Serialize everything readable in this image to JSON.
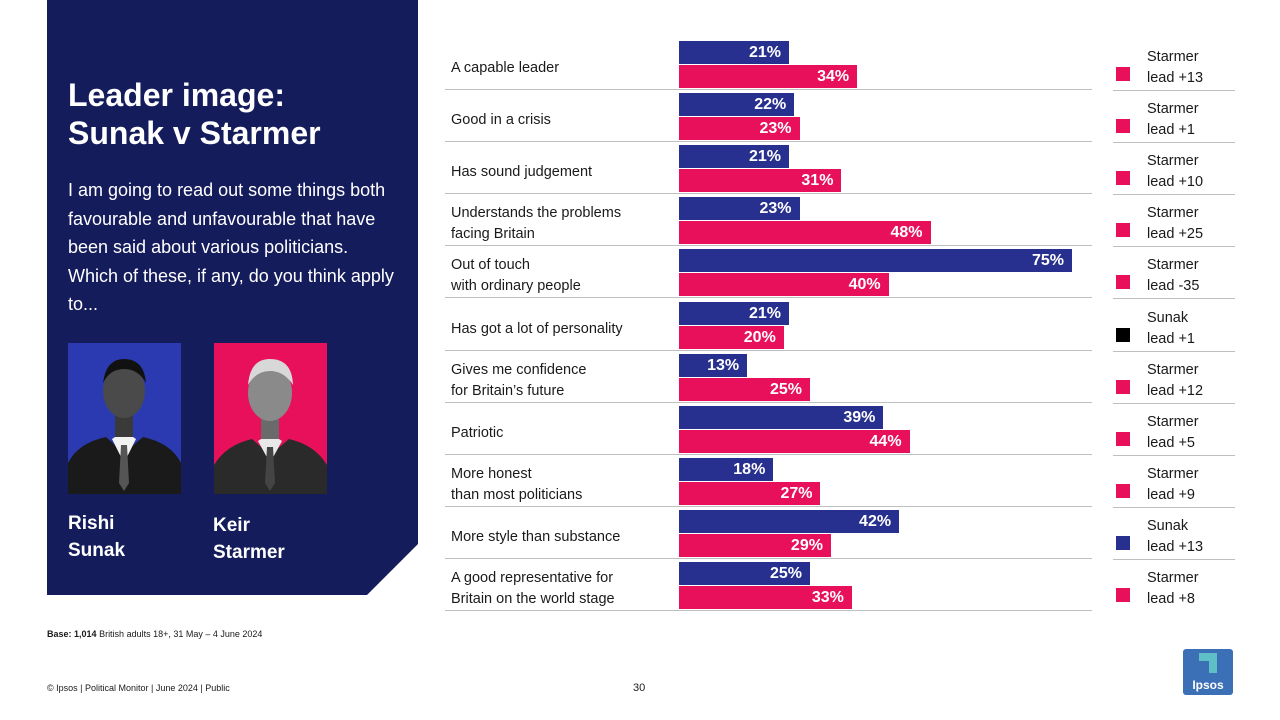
{
  "title_line1": "Leader image:",
  "title_line2": "Sunak v Starmer",
  "question": "I am going to read out some things both favourable and unfavourable that have been said about various politicians. Which of these, if any, do you think apply to...",
  "leaders": [
    {
      "first": "Rishi",
      "last": "Sunak"
    },
    {
      "first": "Keir",
      "last": "Starmer"
    }
  ],
  "colors": {
    "sunak": "#27308f",
    "starmer": "#e8105a",
    "panel": "#151c5c",
    "sunak_lead_marker": "#000000"
  },
  "chart_data": {
    "type": "bar",
    "orientation": "horizontal",
    "unit": "%",
    "xlim": [
      0,
      75
    ],
    "categories": [
      [
        "A capable leader"
      ],
      [
        "Good in a crisis"
      ],
      [
        "Has sound judgement"
      ],
      [
        "Understands the problems",
        "facing Britain"
      ],
      [
        "Out of touch",
        "with ordinary people"
      ],
      [
        "Has got a lot of personality"
      ],
      [
        "Gives me confidence",
        "for Britain’s future"
      ],
      [
        "Patriotic"
      ],
      [
        "More honest",
        "than most politicians"
      ],
      [
        "More style than substance"
      ],
      [
        "A good representative for",
        "Britain on the world stage"
      ]
    ],
    "series": [
      {
        "key": "sunak",
        "values": [
          21,
          22,
          21,
          23,
          75,
          21,
          13,
          39,
          18,
          42,
          25
        ]
      },
      {
        "key": "starmer",
        "values": [
          34,
          23,
          31,
          48,
          40,
          20,
          25,
          44,
          27,
          29,
          33
        ]
      }
    ],
    "value_labels": {
      "sunak": [
        "21%",
        "22%",
        "21%",
        "23%",
        "75%",
        "21%",
        "13%",
        "39%",
        "18%",
        "42%",
        "25%"
      ],
      "starmer": [
        "34%",
        "23%",
        "31%",
        "48%",
        "40%",
        "20%",
        "25%",
        "44%",
        "27%",
        "29%",
        "33%"
      ]
    },
    "leads": [
      {
        "line1": "Starmer",
        "line2": "lead +13",
        "who": "starmer"
      },
      {
        "line1": "Starmer",
        "line2": "lead +1",
        "who": "starmer"
      },
      {
        "line1": "Starmer",
        "line2": "lead +10",
        "who": "starmer"
      },
      {
        "line1": "Starmer",
        "line2": "lead +25",
        "who": "starmer"
      },
      {
        "line1": "Starmer",
        "line2": "lead -35",
        "who": "starmer"
      },
      {
        "line1": "Sunak",
        "line2": "lead +1",
        "who": "sunak_lead_marker"
      },
      {
        "line1": "Starmer",
        "line2": "lead +12",
        "who": "starmer"
      },
      {
        "line1": "Starmer",
        "line2": "lead +5",
        "who": "starmer"
      },
      {
        "line1": "Starmer",
        "line2": "lead +9",
        "who": "starmer"
      },
      {
        "line1": "Sunak",
        "line2": "lead +13",
        "who": "sunak"
      },
      {
        "line1": "Starmer",
        "line2": "lead +8",
        "who": "starmer"
      }
    ]
  },
  "base_label": "Base: 1,014",
  "base_text": "British adults 18+, 31 May – 4 June 2024",
  "footer": "© Ipsos | Political Monitor | June 2024 | Public",
  "page_number": "30",
  "logo_text": "Ipsos"
}
